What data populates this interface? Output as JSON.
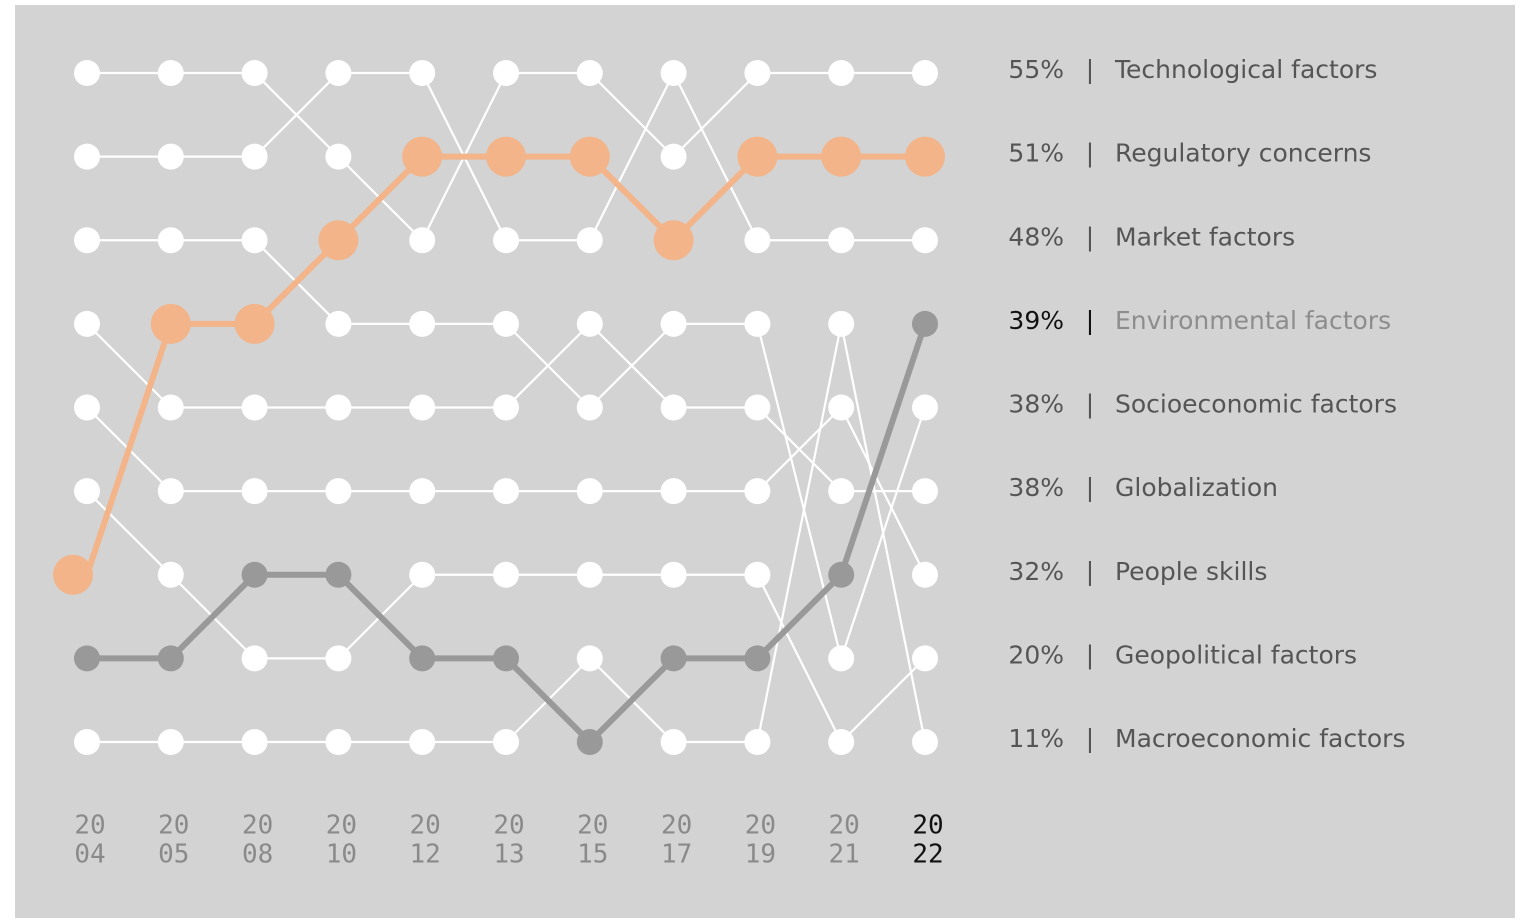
{
  "chart_data": {
    "type": "bump",
    "categories": [
      [
        "20",
        "04"
      ],
      [
        "20",
        "05"
      ],
      [
        "20",
        "08"
      ],
      [
        "20",
        "10"
      ],
      [
        "20",
        "12"
      ],
      [
        "20",
        "13"
      ],
      [
        "20",
        "15"
      ],
      [
        "20",
        "17"
      ],
      [
        "20",
        "19"
      ],
      [
        "20",
        "21"
      ],
      [
        "20",
        "22"
      ]
    ],
    "ylim": [
      1,
      9
    ],
    "series": [
      {
        "name": "Technological factors",
        "color": "#ffffff",
        "end_value": 55,
        "end_value_label": "55%",
        "values": [
          1,
          1,
          1,
          2,
          3,
          1,
          1,
          2,
          1,
          1,
          1
        ]
      },
      {
        "name": "Regulatory concerns",
        "color": "#f2b488",
        "end_value": 51,
        "end_value_label": "51%",
        "values": [
          7,
          4,
          4,
          3,
          2,
          2,
          2,
          3,
          2,
          2,
          2
        ]
      },
      {
        "name": "Market factors",
        "color": "#ffffff",
        "end_value": 48,
        "end_value_label": "48%",
        "values": [
          2,
          2,
          2,
          1,
          1,
          3,
          3,
          1,
          3,
          3,
          3
        ]
      },
      {
        "name": "Environmental factors",
        "color": "#999999",
        "end_value": 39,
        "end_value_label": "39%",
        "values": [
          8,
          8,
          7,
          7,
          8,
          8,
          9,
          8,
          8,
          7,
          4
        ]
      },
      {
        "name": "Socioeconomic factors",
        "color": "#ffffff",
        "end_value": 38,
        "end_value_label": "38%",
        "values": [
          3,
          3,
          3,
          4,
          4,
          4,
          5,
          4,
          4,
          8,
          5
        ]
      },
      {
        "name": "Globalization",
        "color": "#ffffff",
        "end_value": 38,
        "end_value_label": "38%",
        "values": [
          4,
          5,
          5,
          5,
          5,
          5,
          4,
          5,
          5,
          6,
          6
        ]
      },
      {
        "name": "People skills",
        "color": "#ffffff",
        "end_value": 32,
        "end_value_label": "32%",
        "values": [
          5,
          6,
          6,
          6,
          6,
          6,
          6,
          6,
          6,
          5,
          7
        ]
      },
      {
        "name": "Geopolitical factors",
        "color": "#ffffff",
        "end_value": 20,
        "end_value_label": "20%",
        "values": [
          6,
          7,
          8,
          8,
          7,
          7,
          7,
          7,
          7,
          9,
          8
        ]
      },
      {
        "name": "Macroeconomic factors",
        "color": "#ffffff",
        "end_value": 11,
        "end_value_label": "11%",
        "values": [
          9,
          9,
          9,
          9,
          9,
          9,
          8,
          9,
          9,
          4,
          9
        ]
      }
    ]
  }
}
